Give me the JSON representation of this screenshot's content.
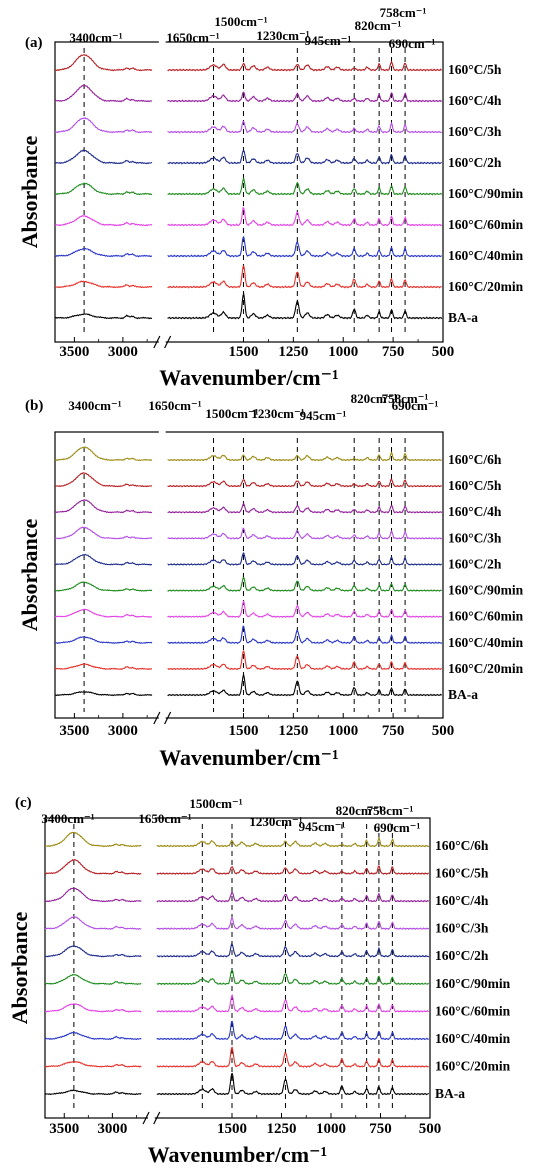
{
  "chart_data": [
    {
      "type": "line",
      "panel_label": "(a)",
      "xlabel": "Wavenumber/cm⁻¹",
      "ylabel": "Absorbance",
      "x_ticks": [
        "3500",
        "3000",
        "1500",
        "1250",
        "1000",
        "750",
        "500"
      ],
      "x_break": "//",
      "peak_markers": [
        {
          "wavenumber": 3400,
          "label": "3400cm⁻¹"
        },
        {
          "wavenumber": 1650,
          "label": "1650cm⁻¹"
        },
        {
          "wavenumber": 1500,
          "label": "1500cm⁻¹"
        },
        {
          "wavenumber": 1230,
          "label": "1230cm⁻¹"
        },
        {
          "wavenumber": 945,
          "label": "945cm⁻¹"
        },
        {
          "wavenumber": 820,
          "label": "820cm⁻¹"
        },
        {
          "wavenumber": 758,
          "label": "758cm⁻¹"
        },
        {
          "wavenumber": 690,
          "label": "690cm⁻¹"
        }
      ],
      "series": [
        {
          "name": "BA-a",
          "color": "#000000",
          "values": []
        },
        {
          "name": "160°C/20min",
          "color": "#e8312a",
          "values": []
        },
        {
          "name": "160°C/40min",
          "color": "#2836c8",
          "values": []
        },
        {
          "name": "160°C/60min",
          "color": "#e443e6",
          "values": []
        },
        {
          "name": "160°C/90min",
          "color": "#1e8c1e",
          "values": []
        },
        {
          "name": "160°C/2h",
          "color": "#1d2a8a",
          "values": []
        },
        {
          "name": "160°C/3h",
          "color": "#b44ee6",
          "values": []
        },
        {
          "name": "160°C/4h",
          "color": "#93209b",
          "values": []
        },
        {
          "name": "160°C/5h",
          "color": "#b51e22",
          "values": []
        }
      ]
    },
    {
      "type": "line",
      "panel_label": "(b)",
      "xlabel": "Wavenumber/cm⁻¹",
      "ylabel": "Absorbance",
      "x_ticks": [
        "3500",
        "3000",
        "1500",
        "1250",
        "1000",
        "750",
        "500"
      ],
      "x_break": "//",
      "peak_markers": [
        {
          "wavenumber": 3400,
          "label": "3400cm⁻¹"
        },
        {
          "wavenumber": 1650,
          "label": "1650cm⁻¹"
        },
        {
          "wavenumber": 1500,
          "label": "1500cm⁻¹"
        },
        {
          "wavenumber": 1230,
          "label": "1230cm⁻¹"
        },
        {
          "wavenumber": 945,
          "label": "945cm⁻¹"
        },
        {
          "wavenumber": 820,
          "label": "820cm⁻¹"
        },
        {
          "wavenumber": 758,
          "label": "758cm⁻¹"
        },
        {
          "wavenumber": 690,
          "label": "690cm⁻¹"
        }
      ],
      "series": [
        {
          "name": "BA-a",
          "color": "#000000",
          "values": []
        },
        {
          "name": "160°C/20min",
          "color": "#e8312a",
          "values": []
        },
        {
          "name": "160°C/40min",
          "color": "#2836c8",
          "values": []
        },
        {
          "name": "160°C/60min",
          "color": "#e443e6",
          "values": []
        },
        {
          "name": "160°C/90min",
          "color": "#1e8c1e",
          "values": []
        },
        {
          "name": "160°C/2h",
          "color": "#1d2a8a",
          "values": []
        },
        {
          "name": "160°C/3h",
          "color": "#b44ee6",
          "values": []
        },
        {
          "name": "160°C/4h",
          "color": "#93209b",
          "values": []
        },
        {
          "name": "160°C/5h",
          "color": "#b51e22",
          "values": []
        },
        {
          "name": "160°C/6h",
          "color": "#9a8a12",
          "values": []
        }
      ]
    },
    {
      "type": "line",
      "panel_label": "(c)",
      "xlabel": "Wavenumber/cm⁻¹",
      "ylabel": "Absorbance",
      "x_ticks": [
        "3500",
        "3000",
        "1500",
        "1250",
        "1000",
        "750",
        "500"
      ],
      "x_break": "//",
      "peak_markers": [
        {
          "wavenumber": 3400,
          "label": "3400cm⁻¹"
        },
        {
          "wavenumber": 1650,
          "label": "1650cm⁻¹"
        },
        {
          "wavenumber": 1500,
          "label": "1500cm⁻¹"
        },
        {
          "wavenumber": 1230,
          "label": "1230cm⁻¹"
        },
        {
          "wavenumber": 945,
          "label": "945cm⁻¹"
        },
        {
          "wavenumber": 820,
          "label": "820cm⁻¹"
        },
        {
          "wavenumber": 758,
          "label": "758cm⁻¹"
        },
        {
          "wavenumber": 690,
          "label": "690cm⁻¹"
        }
      ],
      "series": [
        {
          "name": "BA-a",
          "color": "#000000",
          "values": []
        },
        {
          "name": "160°C/20min",
          "color": "#e8312a",
          "values": []
        },
        {
          "name": "160°C/40min",
          "color": "#2836c8",
          "values": []
        },
        {
          "name": "160°C/60min",
          "color": "#e443e6",
          "values": []
        },
        {
          "name": "160°C/90min",
          "color": "#1e8c1e",
          "values": []
        },
        {
          "name": "160°C/2h",
          "color": "#1d2a8a",
          "values": []
        },
        {
          "name": "160°C/3h",
          "color": "#b44ee6",
          "values": []
        },
        {
          "name": "160°C/4h",
          "color": "#93209b",
          "values": []
        },
        {
          "name": "160°C/5h",
          "color": "#b51e22",
          "values": []
        },
        {
          "name": "160°C/6h",
          "color": "#9a8a12",
          "values": []
        }
      ]
    }
  ]
}
